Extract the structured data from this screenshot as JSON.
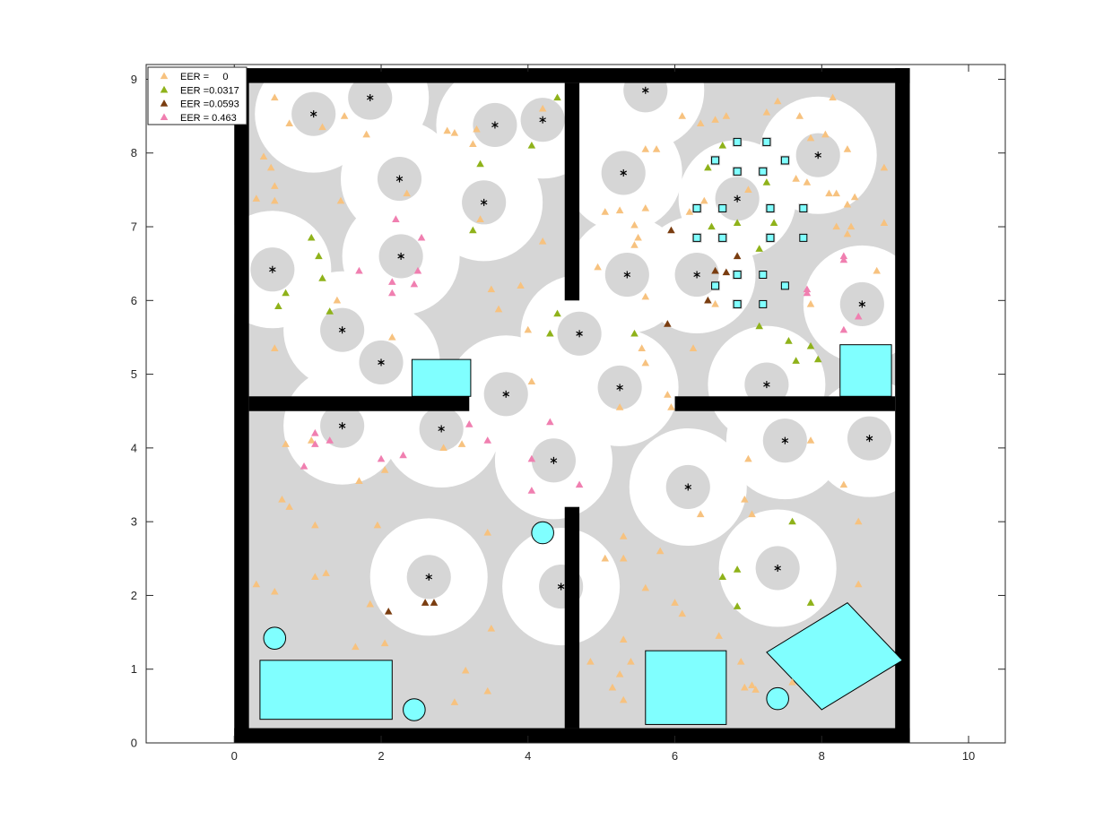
{
  "chart_data": {
    "type": "scatter",
    "title": "",
    "xlabel": "",
    "ylabel": "",
    "xlim": [
      -1.2,
      10.5
    ],
    "ylim": [
      0,
      9.2
    ],
    "x_ticks": [
      0,
      2,
      4,
      6,
      8,
      10
    ],
    "y_ticks": [
      0,
      1,
      2,
      3,
      4,
      5,
      6,
      7,
      8,
      9
    ],
    "grid": false,
    "legend_location": "top-left",
    "colors": {
      "floor": "#d6d6d6",
      "wall": "#000000",
      "covered": "#ffffff",
      "obstacle": "#80ffff",
      "eer0": "#f7c27f",
      "eer1": "#8fb21a",
      "eer2": "#7a3d10",
      "eer3": "#f07fb0"
    },
    "legend": [
      {
        "label": "EER =     0",
        "color_key": "eer0"
      },
      {
        "label": "EER =0.0317",
        "color_key": "eer1"
      },
      {
        "label": "EER =0.0593",
        "color_key": "eer2"
      },
      {
        "label": "EER = 0.463",
        "color_key": "eer3"
      }
    ],
    "map": {
      "outer_walls": [
        [
          0,
          0,
          9.2,
          0.2
        ],
        [
          0,
          8.95,
          9.2,
          9.15
        ],
        [
          0,
          0,
          0.2,
          9.15
        ],
        [
          9.0,
          0,
          9.2,
          9.15
        ]
      ],
      "inner_walls": [
        [
          0.2,
          4.5,
          3.2,
          4.7
        ],
        [
          4.5,
          0.2,
          4.7,
          3.2
        ],
        [
          4.5,
          6.0,
          4.7,
          8.95
        ],
        [
          6.0,
          4.5,
          9.0,
          4.7
        ]
      ],
      "rect_obstacles": [
        [
          0.35,
          0.32,
          2.15,
          1.12
        ],
        [
          2.42,
          4.7,
          3.22,
          5.2
        ],
        [
          5.6,
          0.25,
          6.7,
          1.25
        ],
        [
          8.25,
          4.7,
          8.95,
          5.4
        ]
      ],
      "rotated_rect_obstacle": [
        [
          8.0,
          0.45
        ],
        [
          9.1,
          1.12
        ],
        [
          8.35,
          1.9
        ],
        [
          7.25,
          1.23
        ]
      ],
      "circle_obstacles": [
        [
          0.55,
          1.42,
          0.15
        ],
        [
          2.45,
          0.45,
          0.15
        ],
        [
          4.2,
          2.85,
          0.15
        ],
        [
          7.4,
          0.6,
          0.15
        ]
      ]
    },
    "sensors": [
      [
        0.52,
        6.42
      ],
      [
        1.08,
        8.53
      ],
      [
        1.85,
        8.75
      ],
      [
        2.25,
        7.65
      ],
      [
        2.27,
        6.6
      ],
      [
        1.47,
        5.6
      ],
      [
        2.0,
        5.16
      ],
      [
        3.4,
        7.33
      ],
      [
        3.55,
        8.38
      ],
      [
        4.2,
        8.45
      ],
      [
        3.7,
        4.73
      ],
      [
        4.7,
        5.55
      ],
      [
        4.35,
        3.83
      ],
      [
        5.25,
        4.82
      ],
      [
        5.3,
        7.73
      ],
      [
        5.35,
        6.35
      ],
      [
        5.6,
        8.85
      ],
      [
        6.3,
        6.35
      ],
      [
        6.85,
        7.38
      ],
      [
        7.25,
        4.86
      ],
      [
        7.95,
        7.97
      ],
      [
        8.55,
        5.95
      ],
      [
        6.18,
        3.47
      ],
      [
        7.5,
        4.1
      ],
      [
        8.65,
        4.13
      ],
      [
        7.4,
        2.37
      ],
      [
        2.65,
        2.25
      ],
      [
        4.45,
        2.12
      ],
      [
        1.47,
        4.3
      ],
      [
        2.82,
        4.26
      ]
    ],
    "sensor_coverage_inner": 0.3,
    "sensor_coverage_outer": 0.8,
    "square_targets": [
      [
        6.85,
        8.15
      ],
      [
        7.25,
        8.15
      ],
      [
        6.55,
        7.9
      ],
      [
        7.5,
        7.9
      ],
      [
        6.85,
        7.75
      ],
      [
        7.2,
        7.75
      ],
      [
        6.3,
        7.25
      ],
      [
        6.65,
        7.25
      ],
      [
        7.3,
        7.25
      ],
      [
        7.75,
        7.25
      ],
      [
        6.3,
        6.85
      ],
      [
        6.65,
        6.85
      ],
      [
        7.3,
        6.85
      ],
      [
        7.75,
        6.85
      ],
      [
        6.85,
        6.35
      ],
      [
        7.2,
        6.35
      ],
      [
        6.55,
        6.2
      ],
      [
        7.5,
        6.2
      ],
      [
        6.85,
        5.95
      ],
      [
        7.2,
        5.95
      ]
    ],
    "series": [
      {
        "name": "EER =     0",
        "color_key": "eer0",
        "points": [
          [
            0.55,
            8.75
          ],
          [
            0.75,
            8.4
          ],
          [
            1.5,
            8.5
          ],
          [
            1.2,
            8.35
          ],
          [
            1.8,
            8.25
          ],
          [
            2.9,
            8.3
          ],
          [
            3.0,
            8.27
          ],
          [
            3.3,
            8.32
          ],
          [
            3.25,
            8.12
          ],
          [
            4.2,
            8.6
          ],
          [
            0.4,
            7.95
          ],
          [
            0.5,
            7.8
          ],
          [
            0.55,
            7.55
          ],
          [
            0.3,
            7.38
          ],
          [
            0.55,
            7.35
          ],
          [
            1.45,
            7.35
          ],
          [
            2.35,
            7.45
          ],
          [
            3.35,
            7.1
          ],
          [
            4.2,
            6.8
          ],
          [
            3.5,
            6.15
          ],
          [
            3.9,
            6.2
          ],
          [
            3.6,
            5.88
          ],
          [
            2.15,
            5.5
          ],
          [
            0.55,
            5.35
          ],
          [
            4.05,
            4.9
          ],
          [
            4.0,
            5.6
          ],
          [
            5.05,
            7.2
          ],
          [
            5.25,
            7.22
          ],
          [
            5.45,
            7.02
          ],
          [
            5.6,
            7.25
          ],
          [
            5.5,
            6.85
          ],
          [
            5.45,
            6.75
          ],
          [
            4.95,
            6.45
          ],
          [
            5.6,
            6.05
          ],
          [
            5.55,
            5.35
          ],
          [
            5.6,
            5.15
          ],
          [
            5.25,
            4.55
          ],
          [
            5.9,
            4.72
          ],
          [
            5.95,
            4.55
          ],
          [
            6.25,
            5.35
          ],
          [
            5.6,
            8.05
          ],
          [
            5.75,
            8.05
          ],
          [
            6.1,
            8.5
          ],
          [
            6.35,
            8.4
          ],
          [
            6.55,
            8.45
          ],
          [
            6.7,
            8.5
          ],
          [
            7.25,
            8.55
          ],
          [
            7.4,
            8.7
          ],
          [
            7.7,
            8.5
          ],
          [
            8.15,
            8.75
          ],
          [
            7.85,
            8.2
          ],
          [
            8.05,
            8.25
          ],
          [
            8.35,
            8.05
          ],
          [
            8.85,
            7.8
          ],
          [
            8.1,
            7.45
          ],
          [
            8.2,
            7.45
          ],
          [
            8.45,
            7.4
          ],
          [
            8.35,
            7.3
          ],
          [
            8.2,
            7.0
          ],
          [
            8.4,
            7.0
          ],
          [
            8.35,
            6.9
          ],
          [
            8.85,
            7.05
          ],
          [
            7.65,
            7.65
          ],
          [
            7.8,
            7.6
          ],
          [
            7.0,
            7.5
          ],
          [
            6.4,
            7.35
          ],
          [
            6.2,
            7.2
          ],
          [
            6.55,
            5.95
          ],
          [
            7.85,
            5.95
          ],
          [
            8.75,
            6.4
          ],
          [
            1.4,
            6.0
          ],
          [
            0.7,
            4.05
          ],
          [
            1.05,
            4.1
          ],
          [
            1.7,
            3.55
          ],
          [
            2.05,
            3.7
          ],
          [
            0.65,
            3.3
          ],
          [
            0.75,
            3.2
          ],
          [
            1.1,
            2.95
          ],
          [
            1.95,
            2.95
          ],
          [
            0.3,
            2.15
          ],
          [
            0.55,
            2.05
          ],
          [
            1.1,
            2.25
          ],
          [
            1.25,
            2.3
          ],
          [
            1.85,
            1.88
          ],
          [
            2.05,
            1.35
          ],
          [
            1.65,
            1.3
          ],
          [
            3.1,
            4.05
          ],
          [
            2.85,
            4.0
          ],
          [
            3.45,
            2.85
          ],
          [
            3.5,
            1.55
          ],
          [
            3.15,
            0.98
          ],
          [
            3.0,
            0.55
          ],
          [
            3.45,
            0.7
          ],
          [
            5.05,
            2.5
          ],
          [
            5.3,
            2.8
          ],
          [
            5.3,
            2.5
          ],
          [
            5.6,
            2.1
          ],
          [
            5.8,
            2.6
          ],
          [
            6.0,
            1.9
          ],
          [
            6.1,
            1.75
          ],
          [
            4.85,
            1.1
          ],
          [
            5.3,
            1.4
          ],
          [
            5.4,
            1.1
          ],
          [
            5.25,
            0.93
          ],
          [
            5.15,
            0.75
          ],
          [
            5.3,
            0.58
          ],
          [
            6.6,
            1.45
          ],
          [
            6.9,
            1.1
          ],
          [
            7.05,
            0.78
          ],
          [
            7.1,
            0.72
          ],
          [
            6.95,
            0.75
          ],
          [
            7.6,
            0.82
          ],
          [
            6.35,
            3.1
          ],
          [
            6.95,
            3.3
          ],
          [
            7.05,
            3.1
          ],
          [
            7.0,
            3.85
          ],
          [
            7.85,
            4.1
          ],
          [
            8.3,
            3.5
          ],
          [
            8.5,
            3.0
          ],
          [
            8.5,
            2.15
          ]
        ]
      },
      {
        "name": "EER =0.0317",
        "color_key": "eer1",
        "points": [
          [
            4.4,
            8.75
          ],
          [
            4.05,
            8.1
          ],
          [
            3.35,
            7.85
          ],
          [
            3.25,
            6.95
          ],
          [
            1.05,
            6.85
          ],
          [
            1.15,
            6.6
          ],
          [
            1.2,
            6.3
          ],
          [
            0.7,
            6.1
          ],
          [
            0.6,
            5.92
          ],
          [
            1.3,
            5.85
          ],
          [
            4.4,
            5.82
          ],
          [
            4.3,
            5.55
          ],
          [
            5.45,
            5.55
          ],
          [
            6.65,
            8.1
          ],
          [
            6.45,
            7.8
          ],
          [
            6.85,
            7.05
          ],
          [
            6.5,
            7.0
          ],
          [
            7.25,
            7.6
          ],
          [
            7.35,
            7.05
          ],
          [
            7.15,
            6.7
          ],
          [
            7.15,
            5.65
          ],
          [
            7.55,
            5.45
          ],
          [
            7.85,
            5.38
          ],
          [
            7.95,
            5.2
          ],
          [
            7.65,
            5.18
          ],
          [
            7.6,
            3.0
          ],
          [
            6.65,
            2.25
          ],
          [
            6.85,
            2.35
          ],
          [
            6.85,
            1.85
          ],
          [
            7.85,
            1.9
          ]
        ]
      },
      {
        "name": "EER =0.0593",
        "color_key": "eer2",
        "points": [
          [
            5.95,
            6.95
          ],
          [
            6.85,
            6.6
          ],
          [
            6.55,
            6.4
          ],
          [
            6.7,
            6.38
          ],
          [
            6.45,
            6.0
          ],
          [
            5.9,
            5.68
          ],
          [
            2.1,
            1.78
          ],
          [
            2.6,
            1.9
          ],
          [
            2.72,
            1.9
          ]
        ]
      },
      {
        "name": "EER = 0.463",
        "color_key": "eer3",
        "points": [
          [
            2.2,
            7.1
          ],
          [
            2.55,
            6.85
          ],
          [
            2.5,
            6.4
          ],
          [
            2.15,
            6.25
          ],
          [
            2.45,
            6.22
          ],
          [
            2.15,
            6.1
          ],
          [
            1.7,
            6.4
          ],
          [
            8.3,
            6.6
          ],
          [
            8.3,
            6.55
          ],
          [
            7.8,
            6.15
          ],
          [
            7.8,
            6.1
          ],
          [
            8.5,
            5.78
          ],
          [
            8.3,
            5.6
          ],
          [
            1.1,
            4.2
          ],
          [
            1.1,
            4.05
          ],
          [
            1.3,
            4.1
          ],
          [
            0.95,
            3.75
          ],
          [
            2.0,
            3.85
          ],
          [
            2.3,
            3.9
          ],
          [
            3.2,
            4.32
          ],
          [
            3.45,
            4.1
          ],
          [
            4.05,
            3.85
          ],
          [
            4.3,
            4.35
          ],
          [
            4.05,
            3.42
          ],
          [
            4.7,
            3.5
          ]
        ]
      }
    ]
  }
}
